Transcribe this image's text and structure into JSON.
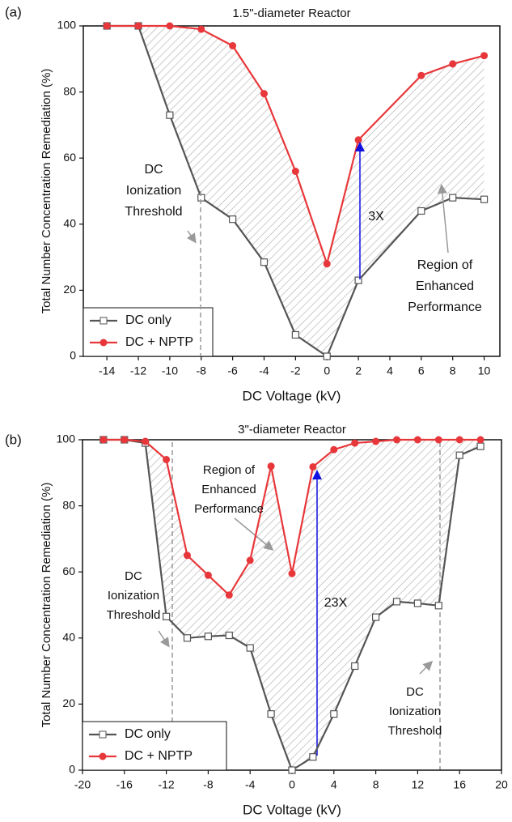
{
  "chart_data": [
    {
      "type": "line",
      "panel_label": "(a)",
      "title": "1.5\"-diameter Reactor",
      "xlabel": "DC Voltage (kV)",
      "ylabel": "Total Number Concentration Remediation (%)",
      "xlim": [
        -15.5,
        11
      ],
      "ylim": [
        0,
        100
      ],
      "xticks": [
        -14,
        -12,
        -10,
        -8,
        -6,
        -4,
        -2,
        0,
        2,
        4,
        6,
        8,
        10
      ],
      "yticks": [
        0,
        20,
        40,
        60,
        80,
        100
      ],
      "series": [
        {
          "name": "DC only",
          "color": "#555555",
          "x": [
            -14,
            -12,
            -10,
            -8,
            -6,
            -4,
            -2,
            0,
            2,
            6,
            8,
            10
          ],
          "values": [
            100,
            100,
            73,
            48,
            41.5,
            28.5,
            6.5,
            0,
            23,
            44,
            48,
            47.5
          ]
        },
        {
          "name": "DC + NPTP",
          "color": "#e8373a",
          "x": [
            -14,
            -12,
            -10,
            -8,
            -6,
            -4,
            -2,
            0,
            2,
            6,
            8,
            10
          ],
          "values": [
            100,
            100,
            100,
            99,
            94,
            79.5,
            56,
            28,
            65.5,
            85,
            88.5,
            91
          ]
        }
      ],
      "annotations": [
        {
          "text": [
            "DC",
            "Ionization",
            "Threshold"
          ]
        },
        {
          "text": [
            "3X"
          ]
        },
        {
          "text": [
            "Region of",
            "Enhanced",
            "Performance"
          ]
        }
      ]
    },
    {
      "type": "line",
      "panel_label": "(b)",
      "title": "3\"-diameter Reactor",
      "xlabel": "DC Voltage (kV)",
      "ylabel": "Total Number Concentration Remediation (%)",
      "xlim": [
        -20,
        20
      ],
      "ylim": [
        0,
        100
      ],
      "xticks": [
        -20,
        -16,
        -12,
        -8,
        -4,
        0,
        4,
        8,
        12,
        16,
        20
      ],
      "yticks": [
        0,
        20,
        40,
        60,
        80,
        100
      ],
      "series": [
        {
          "name": "DC only",
          "color": "#555555",
          "x": [
            -18,
            -16,
            -14,
            -12,
            -10,
            -8,
            -6,
            -4,
            -2,
            0,
            2,
            4,
            6,
            8,
            10,
            12,
            14,
            16,
            18
          ],
          "values": [
            100,
            100,
            99,
            46.5,
            40,
            40.5,
            40.8,
            37,
            17,
            0,
            4,
            17,
            31.5,
            46.3,
            51,
            50.5,
            49.8,
            95.3,
            98
          ]
        },
        {
          "name": "DC + NPTP",
          "color": "#e8373a",
          "x": [
            -18,
            -16,
            -14,
            -12,
            -10,
            -8,
            -6,
            -4,
            -2,
            0,
            2,
            4,
            6,
            8,
            10,
            12,
            14,
            16,
            18
          ],
          "values": [
            100,
            100,
            99.5,
            94,
            65,
            59,
            53,
            63.5,
            92,
            59.5,
            91.8,
            97,
            99,
            99.5,
            100,
            100,
            100,
            100,
            100
          ]
        }
      ],
      "annotations": [
        {
          "text": [
            "Region of",
            "Enhanced",
            "Performance"
          ]
        },
        {
          "text": [
            "23X"
          ]
        },
        {
          "text": [
            "DC",
            "Ionization",
            "Threshold"
          ]
        },
        {
          "text": [
            "DC",
            "Ionization",
            "Threshold"
          ]
        }
      ]
    }
  ]
}
